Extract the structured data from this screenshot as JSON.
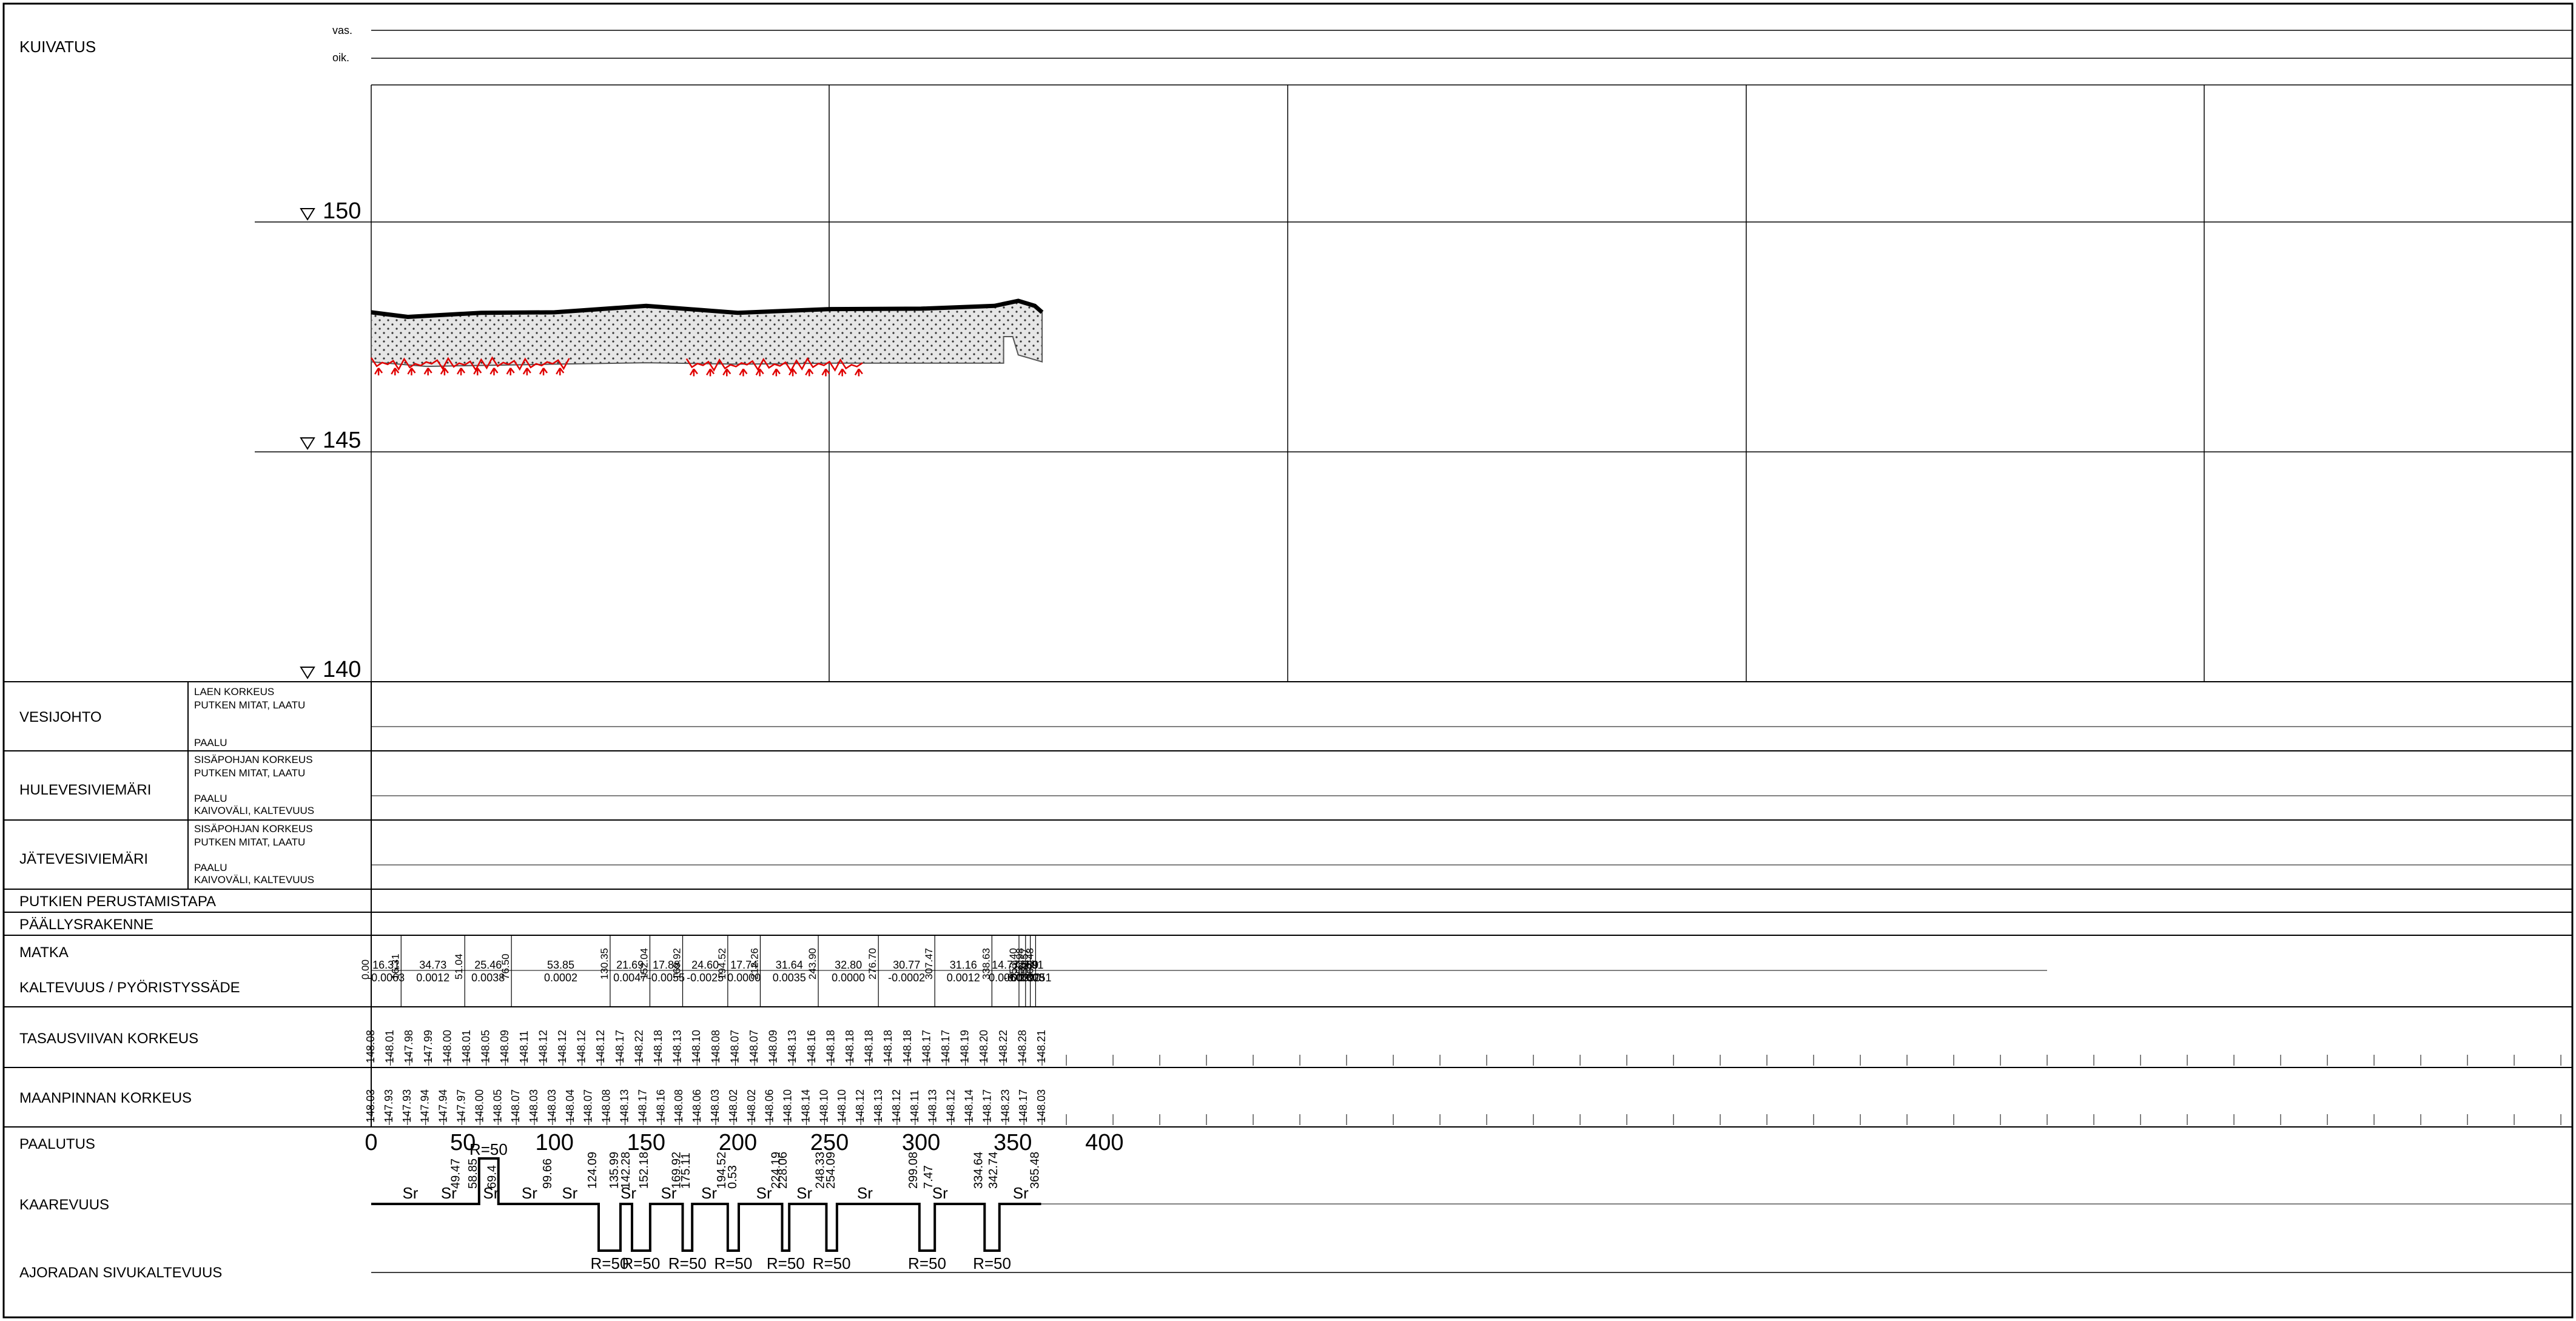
{
  "drainage": {
    "label": "KUIVATUS",
    "left": "vas.",
    "right": "oik."
  },
  "elevations": {
    "e150": "150",
    "e145": "145",
    "e140": "140"
  },
  "rows": {
    "vesijohto": {
      "title": "VESIJOHTO",
      "sub": [
        "LAEN KORKEUS",
        "PUTKEN MITAT, LAATU",
        "PAALU"
      ]
    },
    "hulevesi": {
      "title": "HULEVESIVIEMÄRI",
      "sub": [
        "SISÄPOHJAN KORKEUS",
        "PUTKEN MITAT, LAATU",
        "PAALU",
        "KAIVOVÄLI, KALTEVUUS"
      ]
    },
    "jatevesi": {
      "title": "JÄTEVESIVIEMÄRI",
      "sub": [
        "SISÄPOHJAN KORKEUS",
        "PUTKEN MITAT, LAATU",
        "PAALU",
        "KAIVOVÄLI, KALTEVUUS"
      ]
    },
    "perustamistapa": "PUTKIEN PERUSTAMISTAPA",
    "paallysrakenne": "PÄÄLLYSRAKENNE",
    "matka": "MATKA",
    "kaltevuus": "KALTEVUUS / PYÖRISTYSSÄDE",
    "tasausviiva": "TASAUSVIIVAN KORKEUS",
    "maanpinta": "MAANPINNAN KORKEUS",
    "paalutus": "PAALUTUS",
    "kaarevuus": "KAAREVUUS",
    "sivukaltevuus": "AJORADAN SIVUKALTEVUUS"
  },
  "profile": {
    "ground_surface": [
      [
        0,
        148.03
      ],
      [
        20,
        147.93
      ],
      [
        60,
        148.02
      ],
      [
        100,
        148.03
      ],
      [
        150,
        148.17
      ],
      [
        200,
        148.02
      ],
      [
        250,
        148.1
      ],
      [
        300,
        148.11
      ],
      [
        340,
        148.17
      ],
      [
        353,
        148.28
      ],
      [
        362,
        148.17
      ],
      [
        366,
        148.03
      ]
    ],
    "soil_bottom": [
      [
        0,
        146.95
      ],
      [
        30,
        146.85
      ],
      [
        100,
        146.9
      ],
      [
        150,
        146.93
      ],
      [
        200,
        146.9
      ],
      [
        250,
        146.92
      ],
      [
        300,
        146.92
      ],
      [
        345,
        146.92
      ],
      [
        345,
        147.5
      ],
      [
        350,
        147.5
      ],
      [
        353,
        147.1
      ],
      [
        366,
        146.95
      ]
    ]
  },
  "matka": {
    "stations": [
      "0.00",
      "16.31",
      "51.04",
      "76.50",
      "130.35",
      "152.04",
      "169.92",
      "194.52",
      "212.26",
      "243.90",
      "276.70",
      "307.47",
      "338.63",
      "353.40",
      "356.98",
      "359.57",
      "362.48"
    ],
    "lengths": [
      "16.31",
      "34.73",
      "25.46",
      "53.85",
      "21.69",
      "17.88",
      "24.60",
      "17.74",
      "31.64",
      "32.80",
      "30.77",
      "31.16",
      "14.77",
      "3.58",
      "2.59",
      "2.91"
    ],
    "slopes": [
      "-0.0063",
      "0.0012",
      "0.0038",
      "0.0002",
      "0.0047",
      "-0.0055",
      "-0.0025",
      "0.0000",
      "0.0035",
      "0.0000",
      "-0.0002",
      "0.0012",
      "0.0060",
      "-0.0390",
      "0.0303",
      "-0.0251"
    ]
  },
  "tasausviiva": {
    "stations": [
      0,
      20,
      40,
      60,
      80,
      100,
      120,
      140,
      160,
      180,
      200,
      220,
      240,
      260,
      280,
      300,
      320,
      340,
      360
    ],
    "values": [
      "148.08",
      "148.01",
      "147.98",
      "147.99",
      "148.00",
      "148.01",
      "148.05",
      "148.09",
      "148.11",
      "148.12",
      "148.12",
      "148.12",
      "148.12",
      "148.17",
      "148.22",
      "148.18",
      "148.13",
      "148.10",
      "148.08",
      "148.07",
      "148.07",
      "148.09",
      "148.13",
      "148.16",
      "148.18",
      "148.18",
      "148.18",
      "148.18",
      "148.18",
      "148.17",
      "148.17",
      "148.19",
      "148.20",
      "148.22",
      "148.28",
      "148.21"
    ]
  },
  "maanpinta": {
    "values": [
      "148.03",
      "147.93",
      "147.93",
      "147.94",
      "147.94",
      "147.97",
      "148.00",
      "148.05",
      "148.07",
      "148.03",
      "148.03",
      "148.04",
      "148.07",
      "148.08",
      "148.13",
      "148.17",
      "148.16",
      "148.08",
      "148.06",
      "148.03",
      "148.02",
      "148.02",
      "148.06",
      "148.10",
      "148.14",
      "148.10",
      "148.10",
      "148.12",
      "148.13",
      "148.12",
      "148.11",
      "148.13",
      "148.12",
      "148.14",
      "148.17",
      "148.23",
      "148.17",
      "148.03"
    ]
  },
  "paalutus": {
    "ticks": [
      "0",
      "50",
      "100",
      "150",
      "200",
      "250",
      "300",
      "350",
      "400"
    ]
  },
  "kaarevuus": {
    "points": [
      "49.47",
      "58.85",
      "69.4",
      "99.66",
      "124.09",
      "135.99",
      "142.28",
      "152.18",
      "169.92",
      "175.11",
      "194.52",
      "0.53",
      "224.19",
      "228.06",
      "248.33",
      "254.09",
      "299.08",
      "7.47",
      "334.64",
      "342.74",
      "365.48"
    ],
    "sr": "Sr",
    "radius_up": "R=50",
    "radius_down": "R=50"
  }
}
